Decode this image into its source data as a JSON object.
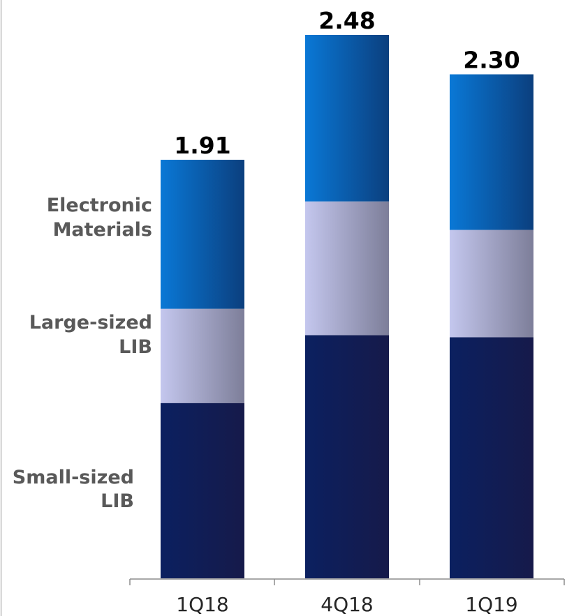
{
  "chart_data": {
    "type": "bar",
    "stacked": true,
    "categories": [
      "1Q18",
      "4Q18",
      "1Q19"
    ],
    "series": [
      {
        "name": "Small-sized LIB",
        "label_lines": [
          "Small-sized",
          "LIB"
        ],
        "values": [
          0.8,
          1.11,
          1.1
        ],
        "color": "#0e1f5c"
      },
      {
        "name": "Large-sized LIB",
        "label_lines": [
          "Large-sized",
          "LIB"
        ],
        "values": [
          0.43,
          0.61,
          0.49
        ],
        "color": "#b8bde0"
      },
      {
        "name": "Electronic Materials",
        "label_lines": [
          "Electronic",
          "Materials"
        ],
        "values": [
          0.68,
          0.76,
          0.71
        ],
        "color": "#0b6fc4"
      }
    ],
    "totals": [
      "1.91",
      "2.48",
      "2.30"
    ],
    "ylim": [
      0,
      2.48
    ],
    "grid": false,
    "legend": "inline-left"
  }
}
